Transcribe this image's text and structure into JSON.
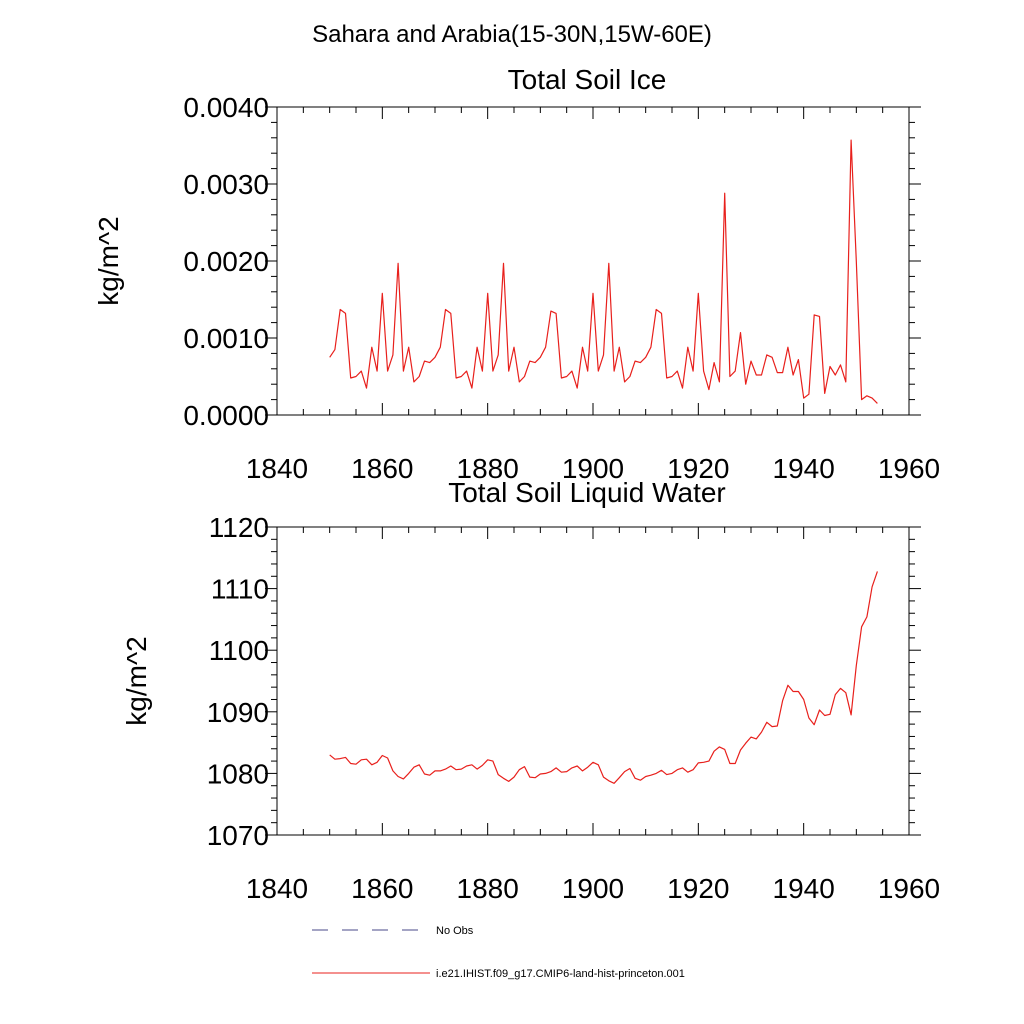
{
  "figure": {
    "suptitle": "Sahara and Arabia(15-30N,15W-60E)"
  },
  "legend": {
    "items": [
      {
        "label": "No Obs",
        "color": "#4a4a8a",
        "style": "dashed"
      },
      {
        "label": "i.e21.IHIST.f09_g17.CMIP6-land-hist-princeton.001",
        "color": "#e8201c",
        "style": "solid"
      }
    ]
  },
  "chart_data": [
    {
      "type": "line",
      "title": "Total Soil Ice",
      "xlabel": "",
      "ylabel": "kg/m^2",
      "xlim": [
        1840,
        1960
      ],
      "ylim": [
        0,
        0.004
      ],
      "xticks": [
        1840,
        1860,
        1880,
        1900,
        1920,
        1940,
        1960
      ],
      "xtick_labels": [
        "1840",
        "1860",
        "1880",
        "1900",
        "1920",
        "1940",
        "1960"
      ],
      "yticks": [
        0,
        0.001,
        0.002,
        0.003,
        0.004
      ],
      "ytick_labels": [
        "0.0000",
        "0.0010",
        "0.0020",
        "0.0030",
        "0.0040"
      ],
      "grid": false,
      "series": [
        {
          "name": "i.e21.IHIST.f09_g17.CMIP6-land-hist-princeton.001",
          "color": "#e8201c",
          "x": [
            1850,
            1851,
            1852,
            1853,
            1854,
            1855,
            1856,
            1857,
            1858,
            1859,
            1860,
            1861,
            1862,
            1863,
            1864,
            1865,
            1866,
            1867,
            1868,
            1869,
            1870,
            1871,
            1872,
            1873,
            1874,
            1875,
            1876,
            1877,
            1878,
            1879,
            1880,
            1881,
            1882,
            1883,
            1884,
            1885,
            1886,
            1887,
            1888,
            1889,
            1890,
            1891,
            1892,
            1893,
            1894,
            1895,
            1896,
            1897,
            1898,
            1899,
            1900,
            1901,
            1902,
            1903,
            1904,
            1905,
            1906,
            1907,
            1908,
            1909,
            1910,
            1911,
            1912,
            1913,
            1914,
            1915,
            1916,
            1917,
            1918,
            1919,
            1920,
            1921,
            1922,
            1923,
            1924,
            1925,
            1926,
            1927,
            1928,
            1929,
            1930,
            1931,
            1932,
            1933,
            1934,
            1935,
            1936,
            1937,
            1938,
            1939,
            1940,
            1941,
            1942,
            1943,
            1944,
            1945,
            1946,
            1947,
            1948,
            1949,
            1950,
            1951,
            1952,
            1953,
            1954
          ],
          "y": [
            0.00075,
            0.00085,
            0.00137,
            0.00132,
            0.00048,
            0.0005,
            0.00057,
            0.00035,
            0.00088,
            0.00057,
            0.00158,
            0.00057,
            0.00078,
            0.00197,
            0.00057,
            0.00088,
            0.00043,
            0.0005,
            0.0007,
            0.00068,
            0.00075,
            0.00088,
            0.00137,
            0.00132,
            0.00048,
            0.0005,
            0.00057,
            0.00035,
            0.00088,
            0.00057,
            0.00158,
            0.00057,
            0.00078,
            0.00197,
            0.00057,
            0.00088,
            0.00043,
            0.0005,
            0.0007,
            0.00068,
            0.00075,
            0.00088,
            0.00135,
            0.00132,
            0.00048,
            0.0005,
            0.00057,
            0.00035,
            0.00088,
            0.00057,
            0.00158,
            0.00057,
            0.00078,
            0.00197,
            0.00057,
            0.00088,
            0.00043,
            0.0005,
            0.0007,
            0.00068,
            0.00075,
            0.00088,
            0.00137,
            0.00132,
            0.00048,
            0.0005,
            0.00057,
            0.00035,
            0.00088,
            0.00057,
            0.00158,
            0.00057,
            0.00033,
            0.00068,
            0.00043,
            0.00288,
            0.0005,
            0.00057,
            0.00107,
            0.0004,
            0.0007,
            0.00052,
            0.00052,
            0.00078,
            0.00075,
            0.00055,
            0.00055,
            0.00088,
            0.00052,
            0.00072,
            0.00022,
            0.00027,
            0.0013,
            0.00128,
            0.00028,
            0.00063,
            0.00052,
            0.00065,
            0.00043,
            0.00357,
            0.002,
            0.0002,
            0.00025,
            0.00022,
            0.00015
          ]
        }
      ]
    },
    {
      "type": "line",
      "title": "Total Soil Liquid Water",
      "xlabel": "",
      "ylabel": "kg/m^2",
      "xlim": [
        1840,
        1960
      ],
      "ylim": [
        1070,
        1120
      ],
      "xticks": [
        1840,
        1860,
        1880,
        1900,
        1920,
        1940,
        1960
      ],
      "xtick_labels": [
        "1840",
        "1860",
        "1880",
        "1900",
        "1920",
        "1940",
        "1960"
      ],
      "yticks": [
        1070,
        1080,
        1090,
        1100,
        1110,
        1120
      ],
      "ytick_labels": [
        "1070",
        "1080",
        "1090",
        "1100",
        "1110",
        "1120"
      ],
      "grid": false,
      "series": [
        {
          "name": "i.e21.IHIST.f09_g17.CMIP6-land-hist-princeton.001",
          "color": "#e8201c",
          "x": [
            1850,
            1851,
            1852,
            1853,
            1854,
            1855,
            1856,
            1857,
            1858,
            1859,
            1860,
            1861,
            1862,
            1863,
            1864,
            1865,
            1866,
            1867,
            1868,
            1869,
            1870,
            1871,
            1872,
            1873,
            1874,
            1875,
            1876,
            1877,
            1878,
            1879,
            1880,
            1881,
            1882,
            1883,
            1884,
            1885,
            1886,
            1887,
            1888,
            1889,
            1890,
            1891,
            1892,
            1893,
            1894,
            1895,
            1896,
            1897,
            1898,
            1899,
            1900,
            1901,
            1902,
            1903,
            1904,
            1905,
            1906,
            1907,
            1908,
            1909,
            1910,
            1911,
            1912,
            1913,
            1914,
            1915,
            1916,
            1917,
            1918,
            1919,
            1920,
            1921,
            1922,
            1923,
            1924,
            1925,
            1926,
            1927,
            1928,
            1929,
            1930,
            1931,
            1932,
            1933,
            1934,
            1935,
            1936,
            1937,
            1938,
            1939,
            1940,
            1941,
            1942,
            1943,
            1944,
            1945,
            1946,
            1947,
            1948,
            1949,
            1950,
            1951,
            1952,
            1953,
            1954
          ],
          "y": [
            1083.0,
            1082.3,
            1082.4,
            1082.6,
            1081.6,
            1081.5,
            1082.2,
            1082.3,
            1081.4,
            1081.8,
            1082.9,
            1082.5,
            1080.4,
            1079.5,
            1079.1,
            1080.0,
            1081.0,
            1081.4,
            1079.9,
            1079.7,
            1080.4,
            1080.4,
            1080.7,
            1081.2,
            1080.6,
            1080.7,
            1081.2,
            1081.4,
            1080.7,
            1081.3,
            1082.2,
            1082.0,
            1079.8,
            1079.2,
            1078.7,
            1079.4,
            1080.6,
            1081.1,
            1079.4,
            1079.3,
            1079.9,
            1080.0,
            1080.3,
            1080.9,
            1080.2,
            1080.3,
            1080.9,
            1081.2,
            1080.4,
            1081.0,
            1081.8,
            1081.4,
            1079.4,
            1078.8,
            1078.4,
            1079.3,
            1080.3,
            1080.8,
            1079.2,
            1078.9,
            1079.5,
            1079.7,
            1080.0,
            1080.5,
            1079.8,
            1080.0,
            1080.6,
            1080.9,
            1080.2,
            1080.6,
            1081.7,
            1081.8,
            1082.0,
            1083.6,
            1084.3,
            1083.9,
            1081.6,
            1081.6,
            1083.8,
            1084.9,
            1085.9,
            1085.6,
            1086.7,
            1088.3,
            1087.6,
            1087.7,
            1091.8,
            1094.3,
            1093.3,
            1093.3,
            1092.0,
            1089.0,
            1087.9,
            1090.3,
            1089.4,
            1089.6,
            1092.8,
            1093.8,
            1093.1,
            1089.5,
            1097.5,
            1103.8,
            1105.4,
            1110.3,
            1112.8
          ]
        }
      ]
    }
  ]
}
